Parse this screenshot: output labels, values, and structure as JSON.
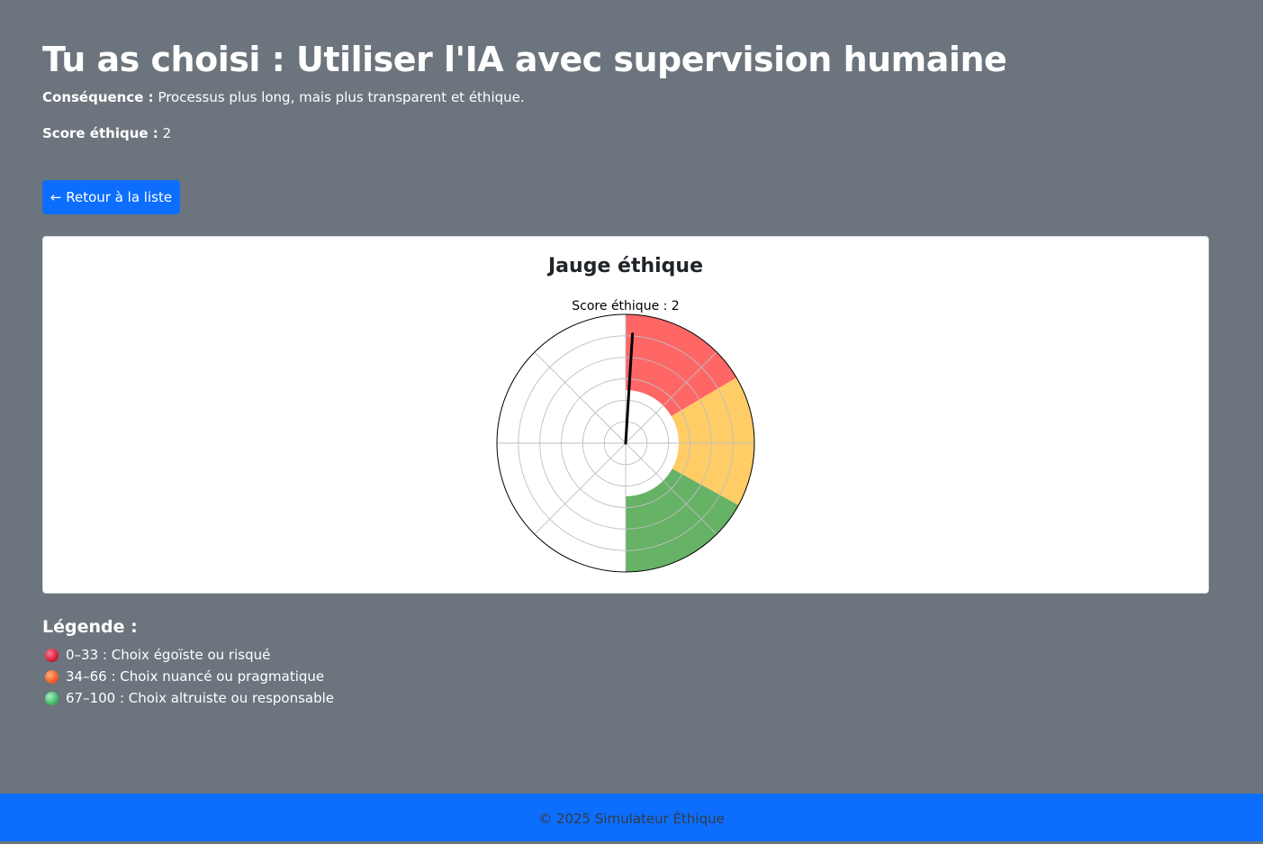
{
  "header": {
    "title": "Tu as choisi : Utiliser l'IA avec supervision humaine",
    "consequence_label": "Conséquence :",
    "consequence_text": "Processus plus long, mais plus transparent et éthique.",
    "score_label": "Score éthique :",
    "score_value": "2"
  },
  "actions": {
    "back_label": "← Retour à la liste"
  },
  "gauge_card": {
    "title": "Jauge éthique"
  },
  "chart_data": {
    "type": "pie",
    "title": "Score éthique : 2",
    "score": 2,
    "scale": [
      0,
      100
    ],
    "segments": [
      {
        "range": [
          0,
          33
        ],
        "color": "#ff6666"
      },
      {
        "range": [
          34,
          66
        ],
        "color": "#ffcc66"
      },
      {
        "range": [
          67,
          100
        ],
        "color": "#66b266"
      }
    ],
    "needle_color": "#000000",
    "grid": true
  },
  "legend": {
    "title": "Légende :",
    "items": [
      {
        "text": "0–33 : Choix égoïste ou risqué",
        "color": "#dc143c"
      },
      {
        "text": "34–66 : Choix nuancé ou pragmatique",
        "color": "#ff6633"
      },
      {
        "text": "67–100 : Choix altruiste ou responsable",
        "color": "#3cb371"
      }
    ]
  },
  "footer": {
    "text": "© 2025 Simulateur Éthique"
  }
}
